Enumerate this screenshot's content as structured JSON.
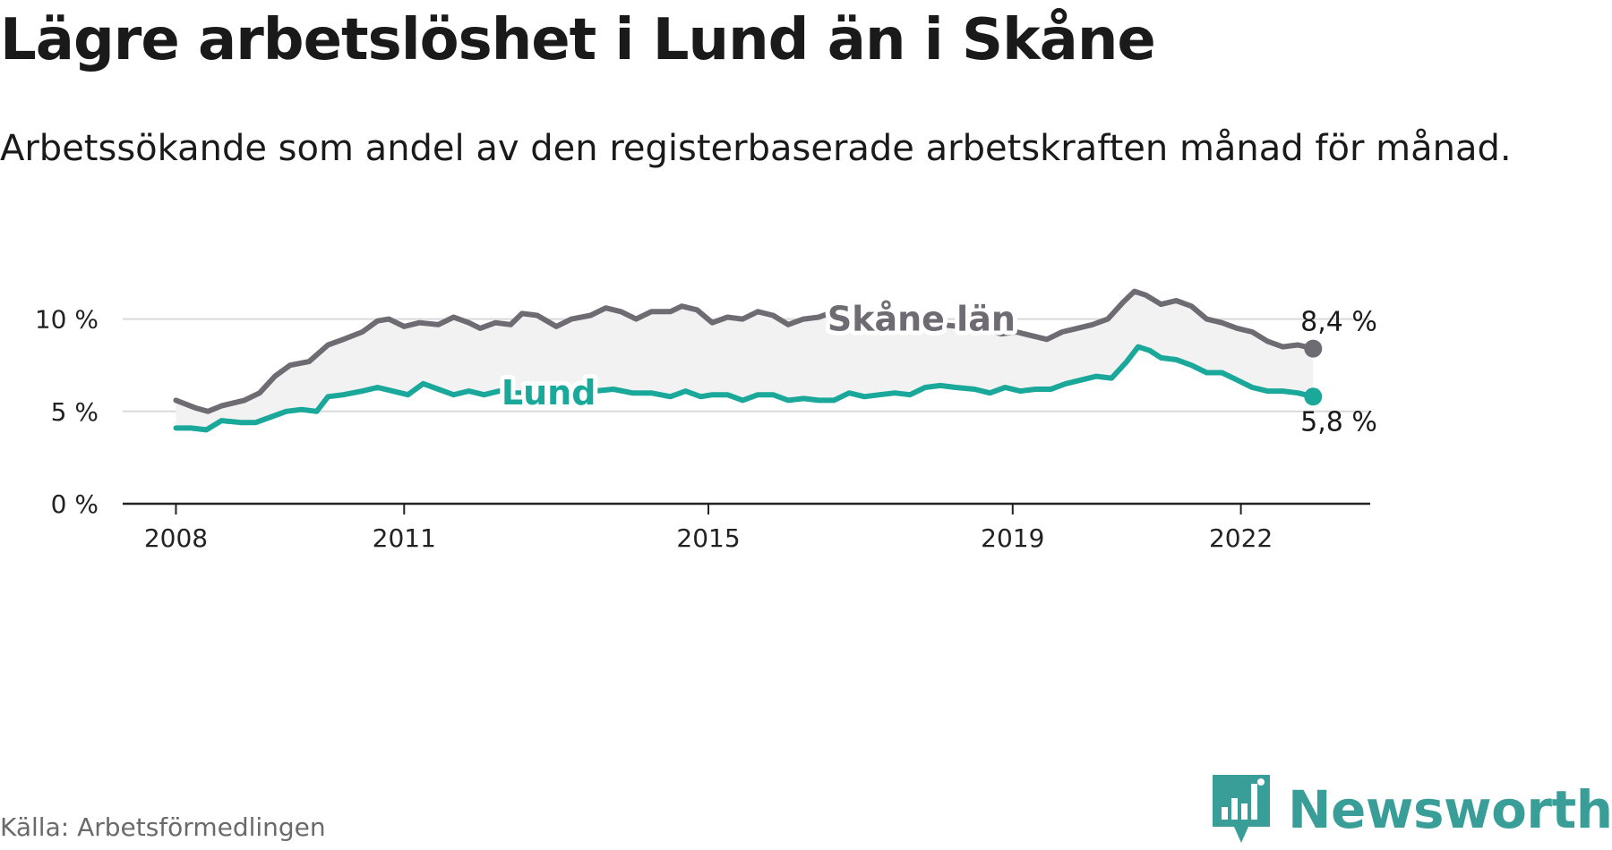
{
  "header": {
    "title": "Lägre arbetslöshet i Lund än i Skåne",
    "subtitle": "Arbetssökande som andel av den registerbaserade arbetskraften månad för månad."
  },
  "footer": {
    "source": "Källa: Arbetsförmedlingen",
    "brand": "Newsworthy"
  },
  "colors": {
    "skane": "#6e6b73",
    "lund": "#1aa89a",
    "band": "#f2f2f2",
    "grid": "#d9d9d9",
    "axis": "#222222",
    "brand": "#3a9e98"
  },
  "icons": {
    "logo": "newsworthy-logo-icon"
  },
  "chart_data": {
    "type": "line",
    "title": "Lägre arbetslöshet i Lund än i Skåne",
    "ylabel": "",
    "xlabel": "",
    "ylim": [
      0,
      12.5
    ],
    "xlim": [
      2007.3,
      2023.7
    ],
    "yticks": [
      {
        "value": 0,
        "label": "0 %"
      },
      {
        "value": 5,
        "label": "5 %"
      },
      {
        "value": 10,
        "label": "10 %"
      }
    ],
    "xticks": [
      {
        "value": 2008,
        "label": "2008"
      },
      {
        "value": 2011,
        "label": "2011"
      },
      {
        "value": 2015,
        "label": "2015"
      },
      {
        "value": 2019,
        "label": "2019"
      },
      {
        "value": 2022,
        "label": "2022"
      }
    ],
    "grid": true,
    "series": [
      {
        "name": "Skåne län",
        "color": "#6e6b73",
        "end_label": "8,4 %",
        "points": [
          [
            2008.0,
            5.6
          ],
          [
            2008.25,
            5.2
          ],
          [
            2008.42,
            5.0
          ],
          [
            2008.6,
            5.3
          ],
          [
            2008.9,
            5.6
          ],
          [
            2009.1,
            6.0
          ],
          [
            2009.3,
            6.9
          ],
          [
            2009.5,
            7.5
          ],
          [
            2009.75,
            7.7
          ],
          [
            2010.0,
            8.6
          ],
          [
            2010.2,
            8.9
          ],
          [
            2010.45,
            9.3
          ],
          [
            2010.65,
            9.9
          ],
          [
            2010.8,
            10.0
          ],
          [
            2011.0,
            9.6
          ],
          [
            2011.2,
            9.8
          ],
          [
            2011.45,
            9.7
          ],
          [
            2011.65,
            10.1
          ],
          [
            2011.85,
            9.8
          ],
          [
            2012.0,
            9.5
          ],
          [
            2012.2,
            9.8
          ],
          [
            2012.4,
            9.7
          ],
          [
            2012.55,
            10.3
          ],
          [
            2012.75,
            10.2
          ],
          [
            2013.0,
            9.6
          ],
          [
            2013.2,
            10.0
          ],
          [
            2013.45,
            10.2
          ],
          [
            2013.65,
            10.6
          ],
          [
            2013.85,
            10.4
          ],
          [
            2014.05,
            10.0
          ],
          [
            2014.25,
            10.4
          ],
          [
            2014.5,
            10.4
          ],
          [
            2014.65,
            10.7
          ],
          [
            2014.85,
            10.5
          ],
          [
            2015.05,
            9.8
          ],
          [
            2015.25,
            10.1
          ],
          [
            2015.45,
            10.0
          ],
          [
            2015.65,
            10.4
          ],
          [
            2015.85,
            10.2
          ],
          [
            2016.05,
            9.7
          ],
          [
            2016.25,
            10.0
          ],
          [
            2016.45,
            10.1
          ],
          [
            2016.65,
            10.4
          ],
          [
            2016.85,
            10.1
          ],
          [
            2017.05,
            9.7
          ],
          [
            2017.25,
            9.8
          ],
          [
            2017.5,
            9.9
          ],
          [
            2017.8,
            9.8
          ],
          [
            2018.05,
            9.7
          ],
          [
            2018.3,
            9.6
          ],
          [
            2018.55,
            9.5
          ],
          [
            2018.85,
            9.2
          ],
          [
            2019.05,
            9.3
          ],
          [
            2019.25,
            9.1
          ],
          [
            2019.45,
            8.9
          ],
          [
            2019.65,
            9.3
          ],
          [
            2019.85,
            9.5
          ],
          [
            2020.05,
            9.7
          ],
          [
            2020.25,
            10.0
          ],
          [
            2020.45,
            10.9
          ],
          [
            2020.6,
            11.5
          ],
          [
            2020.75,
            11.3
          ],
          [
            2020.95,
            10.8
          ],
          [
            2021.15,
            11.0
          ],
          [
            2021.35,
            10.7
          ],
          [
            2021.55,
            10.0
          ],
          [
            2021.75,
            9.8
          ],
          [
            2021.95,
            9.5
          ],
          [
            2022.15,
            9.3
          ],
          [
            2022.35,
            8.8
          ],
          [
            2022.55,
            8.5
          ],
          [
            2022.75,
            8.6
          ],
          [
            2022.95,
            8.4
          ]
        ]
      },
      {
        "name": "Lund",
        "color": "#1aa89a",
        "end_label": "5,8 %",
        "points": [
          [
            2008.0,
            4.1
          ],
          [
            2008.2,
            4.1
          ],
          [
            2008.4,
            4.0
          ],
          [
            2008.6,
            4.5
          ],
          [
            2008.85,
            4.4
          ],
          [
            2009.05,
            4.4
          ],
          [
            2009.25,
            4.7
          ],
          [
            2009.45,
            5.0
          ],
          [
            2009.65,
            5.1
          ],
          [
            2009.85,
            5.0
          ],
          [
            2010.0,
            5.8
          ],
          [
            2010.2,
            5.9
          ],
          [
            2010.45,
            6.1
          ],
          [
            2010.65,
            6.3
          ],
          [
            2010.85,
            6.1
          ],
          [
            2011.05,
            5.9
          ],
          [
            2011.25,
            6.5
          ],
          [
            2011.45,
            6.2
          ],
          [
            2011.65,
            5.9
          ],
          [
            2011.85,
            6.1
          ],
          [
            2012.05,
            5.9
          ],
          [
            2012.25,
            6.1
          ],
          [
            2012.45,
            6.0
          ],
          [
            2012.65,
            6.0
          ],
          [
            2012.85,
            5.8
          ],
          [
            2013.05,
            5.5
          ],
          [
            2013.25,
            6.0
          ],
          [
            2013.5,
            6.1
          ],
          [
            2013.75,
            6.2
          ],
          [
            2014.0,
            6.0
          ],
          [
            2014.25,
            6.0
          ],
          [
            2014.5,
            5.8
          ],
          [
            2014.7,
            6.1
          ],
          [
            2014.9,
            5.8
          ],
          [
            2015.05,
            5.9
          ],
          [
            2015.25,
            5.9
          ],
          [
            2015.45,
            5.6
          ],
          [
            2015.65,
            5.9
          ],
          [
            2015.85,
            5.9
          ],
          [
            2016.05,
            5.6
          ],
          [
            2016.25,
            5.7
          ],
          [
            2016.45,
            5.6
          ],
          [
            2016.65,
            5.6
          ],
          [
            2016.85,
            6.0
          ],
          [
            2017.05,
            5.8
          ],
          [
            2017.25,
            5.9
          ],
          [
            2017.45,
            6.0
          ],
          [
            2017.65,
            5.9
          ],
          [
            2017.85,
            6.3
          ],
          [
            2018.05,
            6.4
          ],
          [
            2018.25,
            6.3
          ],
          [
            2018.5,
            6.2
          ],
          [
            2018.7,
            6.0
          ],
          [
            2018.9,
            6.3
          ],
          [
            2019.1,
            6.1
          ],
          [
            2019.3,
            6.2
          ],
          [
            2019.5,
            6.2
          ],
          [
            2019.7,
            6.5
          ],
          [
            2019.9,
            6.7
          ],
          [
            2020.1,
            6.9
          ],
          [
            2020.3,
            6.8
          ],
          [
            2020.5,
            7.7
          ],
          [
            2020.65,
            8.5
          ],
          [
            2020.8,
            8.3
          ],
          [
            2020.95,
            7.9
          ],
          [
            2021.15,
            7.8
          ],
          [
            2021.35,
            7.5
          ],
          [
            2021.55,
            7.1
          ],
          [
            2021.75,
            7.1
          ],
          [
            2021.95,
            6.7
          ],
          [
            2022.15,
            6.3
          ],
          [
            2022.35,
            6.1
          ],
          [
            2022.55,
            6.1
          ],
          [
            2022.75,
            6.0
          ],
          [
            2022.95,
            5.8
          ]
        ]
      }
    ],
    "series_labels": [
      {
        "series": "Skåne län",
        "text": "Skåne län",
        "x": 2017.8,
        "y": 10.0
      },
      {
        "series": "Lund",
        "text": "Lund",
        "x": 2012.9,
        "y": 6.0
      }
    ]
  }
}
